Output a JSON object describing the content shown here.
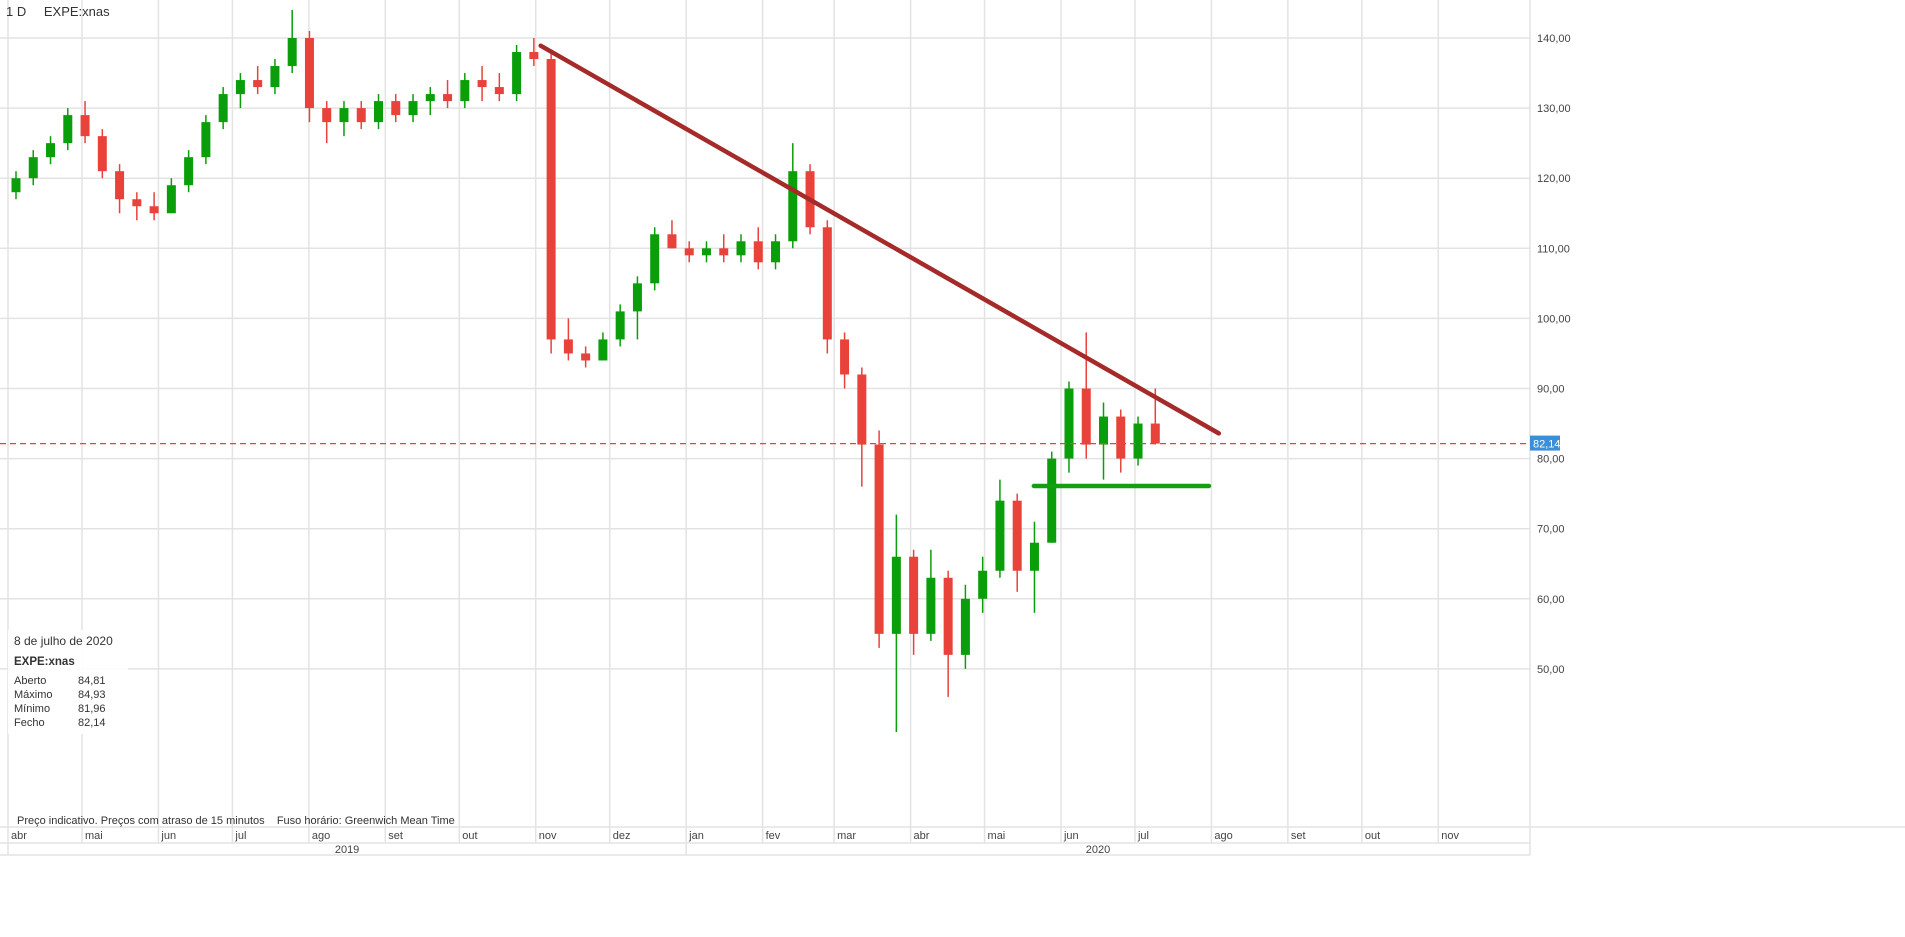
{
  "header": {
    "interval": "1 D",
    "symbol": "EXPE:xnas"
  },
  "info_box": {
    "date": "8 de julho de 2020",
    "symbol": "EXPE:xnas",
    "rows": [
      {
        "label": "Aberto",
        "value": "84,81"
      },
      {
        "label": "Máximo",
        "value": "84,93"
      },
      {
        "label": "Mínimo",
        "value": "81,96"
      },
      {
        "label": "Fecho",
        "value": "82,14"
      }
    ]
  },
  "footnote": "Preço indicativo. Preços com atraso de 15 minutos    Fuso horário: Greenwich Mean Time",
  "chart_data": {
    "type": "candlestick",
    "title": "",
    "ylim": [
      40,
      145
    ],
    "xlim": [
      "2019-04-01",
      "2020-11-30"
    ],
    "y_ticks": [
      50,
      60,
      70,
      80,
      90,
      100,
      110,
      120,
      130,
      140
    ],
    "y_tick_labels": [
      "50,00",
      "60,00",
      "70,00",
      "80,00",
      "90,00",
      "100,00",
      "110,00",
      "120,00",
      "130,00",
      "140,00"
    ],
    "x_ticks": [
      {
        "date": "2019-04-01",
        "label": "abr"
      },
      {
        "date": "2019-05-01",
        "label": "mai"
      },
      {
        "date": "2019-06-01",
        "label": "jun"
      },
      {
        "date": "2019-07-01",
        "label": "jul"
      },
      {
        "date": "2019-08-01",
        "label": "ago"
      },
      {
        "date": "2019-09-01",
        "label": "set"
      },
      {
        "date": "2019-10-01",
        "label": "out"
      },
      {
        "date": "2019-11-01",
        "label": "nov"
      },
      {
        "date": "2019-12-01",
        "label": "dez"
      },
      {
        "date": "2020-01-01",
        "label": "jan"
      },
      {
        "date": "2020-02-01",
        "label": "fev"
      },
      {
        "date": "2020-03-01",
        "label": "mar"
      },
      {
        "date": "2020-04-01",
        "label": "abr"
      },
      {
        "date": "2020-05-01",
        "label": "mai"
      },
      {
        "date": "2020-06-01",
        "label": "jun"
      },
      {
        "date": "2020-07-01",
        "label": "jul"
      },
      {
        "date": "2020-08-01",
        "label": "ago"
      },
      {
        "date": "2020-09-01",
        "label": "set"
      },
      {
        "date": "2020-10-01",
        "label": "out"
      },
      {
        "date": "2020-11-01",
        "label": "nov"
      }
    ],
    "years": [
      {
        "label": "2019",
        "start": "2019-04-01",
        "end": "2020-01-01"
      },
      {
        "label": "2020",
        "start": "2020-01-01",
        "end": "2020-11-30"
      }
    ],
    "grid": true,
    "colors": {
      "up": "#0a9e0a",
      "down": "#e8423a",
      "resistance": "#a52a2a",
      "support": "#12a012",
      "last_price": "#e8423a",
      "last_price_badge": "#3a8fd8"
    },
    "last_price": {
      "value": 82.14,
      "label": "82,14"
    },
    "trendlines": [
      {
        "name": "resistance",
        "from": [
          "2019-11-03",
          138.9
        ],
        "to": [
          "2020-08-04",
          83.6
        ]
      },
      {
        "name": "support",
        "from": [
          "2020-05-21",
          76.1
        ],
        "to": [
          "2020-07-31",
          76.1
        ]
      }
    ],
    "candles_columns": [
      "date",
      "open",
      "high",
      "low",
      "close"
    ],
    "candles": [
      [
        "2019-04-01",
        118,
        121,
        117,
        120
      ],
      [
        "2019-04-08",
        120,
        124,
        119,
        123
      ],
      [
        "2019-04-15",
        123,
        126,
        122,
        125
      ],
      [
        "2019-04-22",
        125,
        130,
        124,
        129
      ],
      [
        "2019-04-29",
        129,
        131,
        125,
        126
      ],
      [
        "2019-05-06",
        126,
        127,
        120,
        121
      ],
      [
        "2019-05-13",
        121,
        122,
        115,
        117
      ],
      [
        "2019-05-20",
        117,
        118,
        114,
        116
      ],
      [
        "2019-05-27",
        116,
        118,
        114,
        115
      ],
      [
        "2019-06-03",
        115,
        120,
        115,
        119
      ],
      [
        "2019-06-10",
        119,
        124,
        118,
        123
      ],
      [
        "2019-06-17",
        123,
        129,
        122,
        128
      ],
      [
        "2019-06-24",
        128,
        133,
        127,
        132
      ],
      [
        "2019-07-01",
        132,
        135,
        130,
        134
      ],
      [
        "2019-07-08",
        134,
        136,
        132,
        133
      ],
      [
        "2019-07-15",
        133,
        137,
        132,
        136
      ],
      [
        "2019-07-22",
        136,
        144,
        135,
        140
      ],
      [
        "2019-07-29",
        140,
        141,
        128,
        130
      ],
      [
        "2019-08-05",
        130,
        131,
        125,
        128
      ],
      [
        "2019-08-12",
        128,
        131,
        126,
        130
      ],
      [
        "2019-08-19",
        130,
        131,
        127,
        128
      ],
      [
        "2019-08-26",
        128,
        132,
        127,
        131
      ],
      [
        "2019-09-02",
        131,
        132,
        128,
        129
      ],
      [
        "2019-09-09",
        129,
        132,
        128,
        131
      ],
      [
        "2019-09-16",
        131,
        133,
        129,
        132
      ],
      [
        "2019-09-23",
        132,
        134,
        130,
        131
      ],
      [
        "2019-09-30",
        131,
        135,
        130,
        134
      ],
      [
        "2019-10-07",
        134,
        136,
        131,
        133
      ],
      [
        "2019-10-14",
        133,
        135,
        131,
        132
      ],
      [
        "2019-10-21",
        132,
        139,
        131,
        138
      ],
      [
        "2019-10-28",
        138,
        140,
        136,
        137
      ],
      [
        "2019-11-04",
        137,
        138,
        95,
        97
      ],
      [
        "2019-11-11",
        97,
        100,
        94,
        95
      ],
      [
        "2019-11-18",
        95,
        96,
        93,
        94
      ],
      [
        "2019-11-25",
        94,
        98,
        94,
        97
      ],
      [
        "2019-12-02",
        97,
        102,
        96,
        101
      ],
      [
        "2019-12-09",
        101,
        106,
        97,
        105
      ],
      [
        "2019-12-16",
        105,
        113,
        104,
        112
      ],
      [
        "2019-12-23",
        112,
        114,
        110,
        110
      ],
      [
        "2019-12-30",
        110,
        111,
        108,
        109
      ],
      [
        "2020-01-06",
        109,
        111,
        108,
        110
      ],
      [
        "2020-01-13",
        110,
        112,
        108,
        109
      ],
      [
        "2020-01-20",
        109,
        112,
        108,
        111
      ],
      [
        "2020-01-27",
        111,
        113,
        107,
        108
      ],
      [
        "2020-02-03",
        108,
        112,
        107,
        111
      ],
      [
        "2020-02-10",
        111,
        125,
        110,
        121
      ],
      [
        "2020-02-17",
        121,
        122,
        112,
        113
      ],
      [
        "2020-02-24",
        113,
        114,
        95,
        97
      ],
      [
        "2020-03-02",
        97,
        98,
        90,
        92
      ],
      [
        "2020-03-09",
        92,
        93,
        76,
        82
      ],
      [
        "2020-03-16",
        82,
        84,
        53,
        55
      ],
      [
        "2020-03-23",
        55,
        72,
        41,
        66
      ],
      [
        "2020-03-30",
        66,
        67,
        52,
        55
      ],
      [
        "2020-04-06",
        55,
        67,
        54,
        63
      ],
      [
        "2020-04-13",
        63,
        64,
        46,
        52
      ],
      [
        "2020-04-20",
        52,
        62,
        50,
        60
      ],
      [
        "2020-04-27",
        60,
        66,
        58,
        64
      ],
      [
        "2020-05-04",
        64,
        77,
        63,
        74
      ],
      [
        "2020-05-11",
        74,
        75,
        61,
        64
      ],
      [
        "2020-05-18",
        64,
        71,
        58,
        68
      ],
      [
        "2020-05-25",
        68,
        81,
        68,
        80
      ],
      [
        "2020-06-01",
        80,
        91,
        78,
        90
      ],
      [
        "2020-06-08",
        90,
        98,
        80,
        82
      ],
      [
        "2020-06-15",
        82,
        88,
        77,
        86
      ],
      [
        "2020-06-22",
        86,
        87,
        78,
        80
      ],
      [
        "2020-06-29",
        80,
        86,
        79,
        85
      ],
      [
        "2020-07-06",
        85,
        90,
        82,
        82.14
      ]
    ]
  }
}
